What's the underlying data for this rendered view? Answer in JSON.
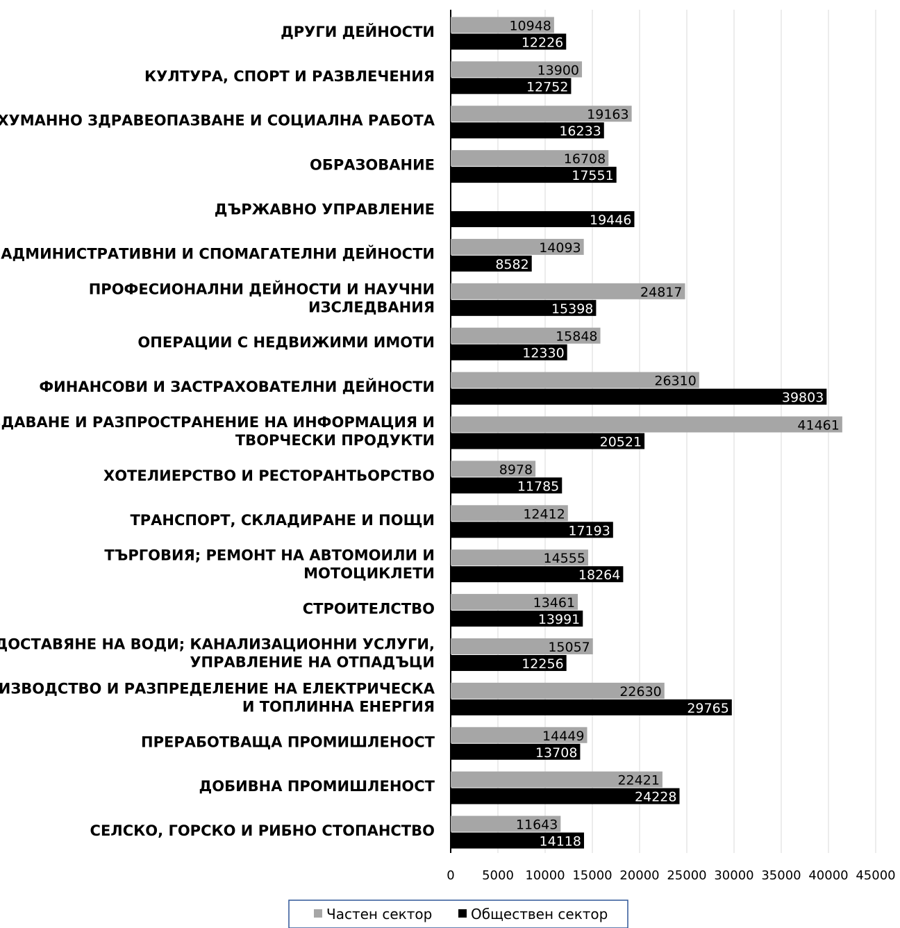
{
  "chart_data": {
    "type": "bar",
    "orientation": "horizontal",
    "categories": [
      [
        "ДРУГИ ДЕЙНОСТИ"
      ],
      [
        "КУЛТУРА, СПОРТ И РАЗВЛЕЧЕНИЯ"
      ],
      [
        "ХУМАННО ЗДРАВЕОПАЗВАНЕ И СОЦИАЛНА РАБОТА"
      ],
      [
        "ОБРАЗОВАНИЕ"
      ],
      [
        "ДЪРЖАВНО УПРАВЛЕНИЕ"
      ],
      [
        "АДМИНИСТРАТИВНИ И СПОМАГАТЕЛНИ ДЕЙНОСТИ"
      ],
      [
        "ПРОФЕСИОНАЛНИ ДЕЙНОСТИ И НАУЧНИ",
        "ИЗСЛЕДВАНИЯ"
      ],
      [
        "ОПЕРАЦИИ С НЕДВИЖИМИ ИМОТИ"
      ],
      [
        "ФИНАНСОВИ И ЗАСТРАХОВАТЕЛНИ ДЕЙНОСТИ"
      ],
      [
        "СЪЗДАВАНЕ И РАЗПРОСТРАНЕНИЕ НА ИНФОРМАЦИЯ И",
        "ТВОРЧЕСКИ ПРОДУКТИ"
      ],
      [
        "ХОТЕЛИЕРСТВО И РЕСТОРАНТЬОРСТВО"
      ],
      [
        "ТРАНСПОРТ, СКЛАДИРАНЕ И ПОЩИ"
      ],
      [
        "ТЪРГОВИЯ; РЕМОНТ НА АВТОМОИЛИ И",
        "МОТОЦИКЛЕТИ"
      ],
      [
        "СТРОИТЕЛСТВО"
      ],
      [
        "ДОСТАВЯНЕ НА ВОДИ; КАНАЛИЗАЦИОННИ УСЛУГИ,",
        "УПРАВЛЕНИЕ НА ОТПАДЪЦИ"
      ],
      [
        "ПРОИЗВОДСТВО И РАЗПРЕДЕЛЕНИЕ НА ЕЛЕКТРИЧЕСКА",
        "И ТОПЛИННА ЕНЕРГИЯ"
      ],
      [
        "ПРЕРАБОТВАЩА ПРОМИШЛЕНОСТ"
      ],
      [
        "ДОБИВНА ПРОМИШЛЕНОСТ"
      ],
      [
        "СЕЛСКО, ГОРСКО И РИБНО СТОПАНСТВО"
      ]
    ],
    "series": [
      {
        "name": "Частен сектор",
        "color": "#a6a6a6",
        "label_color": "#000000",
        "values": [
          10948,
          13900,
          19163,
          16708,
          null,
          14093,
          24817,
          15848,
          26310,
          41461,
          8978,
          12412,
          14555,
          13461,
          15057,
          22630,
          14449,
          22421,
          11643
        ]
      },
      {
        "name": "Обществен сектор",
        "color": "#000000",
        "label_color": "#ffffff",
        "values": [
          12226,
          12752,
          16233,
          17551,
          19446,
          8582,
          15398,
          12330,
          39803,
          20521,
          11785,
          17193,
          18264,
          13991,
          12256,
          29765,
          13708,
          24228,
          14118
        ]
      }
    ],
    "x_ticks": [
      0,
      5000,
      10000,
      15000,
      20000,
      25000,
      30000,
      35000,
      40000,
      45000
    ],
    "xlim": [
      0,
      45000
    ],
    "gridlines": "vertical",
    "legend_position": "bottom",
    "title": "",
    "xlabel": "",
    "ylabel": ""
  }
}
